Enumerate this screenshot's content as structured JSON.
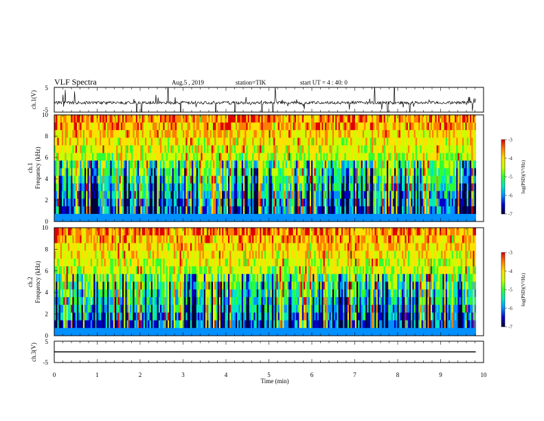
{
  "header": {
    "title": "VLF Spectra",
    "date": "Aug.5 , 2019",
    "station": "station=TIK",
    "start": "start UT = 4 : 40: 0"
  },
  "chart_data": [
    {
      "type": "line",
      "name": "ch1-waveform",
      "ylabel": "ch.1(V)",
      "ylim": [
        -5,
        5
      ],
      "yticks": [
        "5",
        "-5"
      ],
      "baseline": -1.2,
      "color": "#000000"
    },
    {
      "type": "heatmap",
      "name": "ch1-spectrogram",
      "ylabel_line1": "ch.1",
      "ylabel_line2": "Frequency (kHz)",
      "ylim": [
        0,
        10
      ],
      "yticks": [
        "0",
        "2",
        "4",
        "6",
        "8",
        "10"
      ],
      "colorbar": {
        "label": "log(PSD)(V²/Hz)",
        "range": [
          -7,
          -3
        ],
        "ticks": [
          "-3",
          "-4",
          "-5",
          "-6",
          "-7"
        ]
      }
    },
    {
      "type": "heatmap",
      "name": "ch2-spectrogram",
      "ylabel_line1": "ch.2",
      "ylabel_line2": "Frequency (kHz)",
      "ylim": [
        0,
        10
      ],
      "yticks": [
        "0",
        "2",
        "4",
        "6",
        "8",
        "10"
      ],
      "colorbar": {
        "label": "log(PSD)(V²/Hz)",
        "range": [
          -7,
          -3
        ],
        "ticks": [
          "-3",
          "-4",
          "-5",
          "-6",
          "-7"
        ]
      }
    },
    {
      "type": "line",
      "name": "ch3-waveform",
      "ylabel": "ch.3(V)",
      "ylim": [
        -5,
        5
      ],
      "yticks": [
        "5",
        "-5"
      ],
      "baseline": 0,
      "color": "#000000"
    }
  ],
  "xaxis": {
    "label": "Time (min)",
    "xlim": [
      0,
      10
    ],
    "data_end": 9.82,
    "ticks": [
      "0",
      "1",
      "2",
      "3",
      "4",
      "5",
      "6",
      "7",
      "8",
      "9",
      "10"
    ]
  },
  "colormap": [
    "#00003a",
    "#0000c8",
    "#0090ff",
    "#00e8c0",
    "#30ff30",
    "#c8ff00",
    "#ffe000",
    "#ff8000",
    "#e00000",
    "#ffffff"
  ]
}
